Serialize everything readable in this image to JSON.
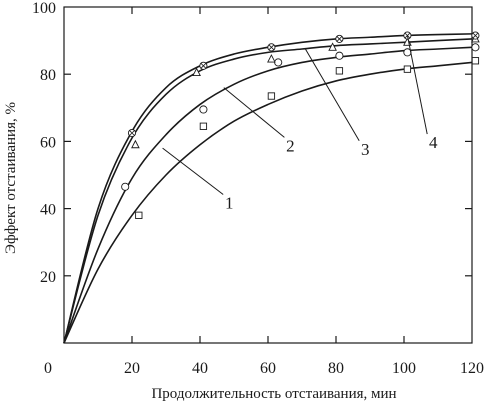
{
  "chart_data": {
    "type": "line",
    "title": "",
    "xlabel": "Продолжительность отстаивания, мин",
    "ylabel": "Эффект отстаивания, %",
    "xlim": [
      0,
      120
    ],
    "ylim": [
      0,
      100
    ],
    "x_ticks": [
      "0",
      "20",
      "40",
      "60",
      "80",
      "100",
      "120"
    ],
    "y_ticks": [
      "20",
      "40",
      "60",
      "80",
      "100"
    ],
    "grid": false,
    "series": [
      {
        "name": "1",
        "marker": "square",
        "curve": {
          "x": [
            0,
            10,
            20,
            30,
            40,
            50,
            60,
            70,
            80,
            90,
            100,
            110,
            120
          ],
          "y": [
            0,
            22,
            38,
            50,
            59,
            66,
            71,
            75,
            78,
            80,
            81.5,
            82.5,
            83.5
          ]
        },
        "points": {
          "x": [
            22,
            41,
            61,
            81,
            101,
            121
          ],
          "y": [
            38,
            64.5,
            73.5,
            81,
            81.5,
            84
          ]
        }
      },
      {
        "name": "2",
        "marker": "circle",
        "curve": {
          "x": [
            0,
            10,
            20,
            30,
            40,
            50,
            60,
            70,
            80,
            90,
            100,
            110,
            120
          ],
          "y": [
            0,
            28,
            49,
            62,
            71,
            77,
            81,
            83.5,
            85,
            86,
            87,
            87.5,
            88
          ]
        },
        "points": {
          "x": [
            18,
            41,
            63,
            81,
            101,
            121
          ],
          "y": [
            46.5,
            69.5,
            83.5,
            85.5,
            86.5,
            88
          ]
        }
      },
      {
        "name": "3",
        "marker": "triangle",
        "curve": {
          "x": [
            0,
            10,
            20,
            30,
            40,
            50,
            60,
            70,
            80,
            90,
            100,
            110,
            120
          ],
          "y": [
            0,
            38,
            61,
            74,
            81,
            84.5,
            86.5,
            87.5,
            88.5,
            89,
            89.5,
            90,
            90.5
          ]
        },
        "points": {
          "x": [
            21,
            39,
            61,
            79,
            101,
            121
          ],
          "y": [
            59,
            80.5,
            84.5,
            88,
            89.5,
            90.5
          ]
        }
      },
      {
        "name": "4",
        "marker": "circle-cross",
        "curve": {
          "x": [
            0,
            10,
            20,
            30,
            40,
            50,
            60,
            70,
            80,
            90,
            100,
            110,
            120
          ],
          "y": [
            0,
            40,
            63,
            76,
            82.5,
            86,
            88,
            89.5,
            90.5,
            91,
            91.5,
            91.8,
            92
          ]
        },
        "points": {
          "x": [
            20,
            41,
            61,
            81,
            101,
            121
          ],
          "y": [
            62.5,
            82.5,
            88,
            90.5,
            91.5,
            91.5
          ]
        }
      }
    ],
    "annotations": [
      {
        "text": "1",
        "series": "1",
        "anchor_x": 29,
        "anchor_y": 58,
        "label_x": 48,
        "label_y": 43
      },
      {
        "text": "2",
        "series": "2",
        "anchor_x": 47,
        "anchor_y": 76,
        "label_x": 66,
        "label_y": 60
      },
      {
        "text": "3",
        "series": "3",
        "anchor_x": 71,
        "anchor_y": 87.5,
        "label_x": 88,
        "label_y": 59
      },
      {
        "text": "4",
        "series": "4",
        "anchor_x": 101,
        "anchor_y": 91.5,
        "label_x": 108,
        "label_y": 61
      }
    ]
  }
}
